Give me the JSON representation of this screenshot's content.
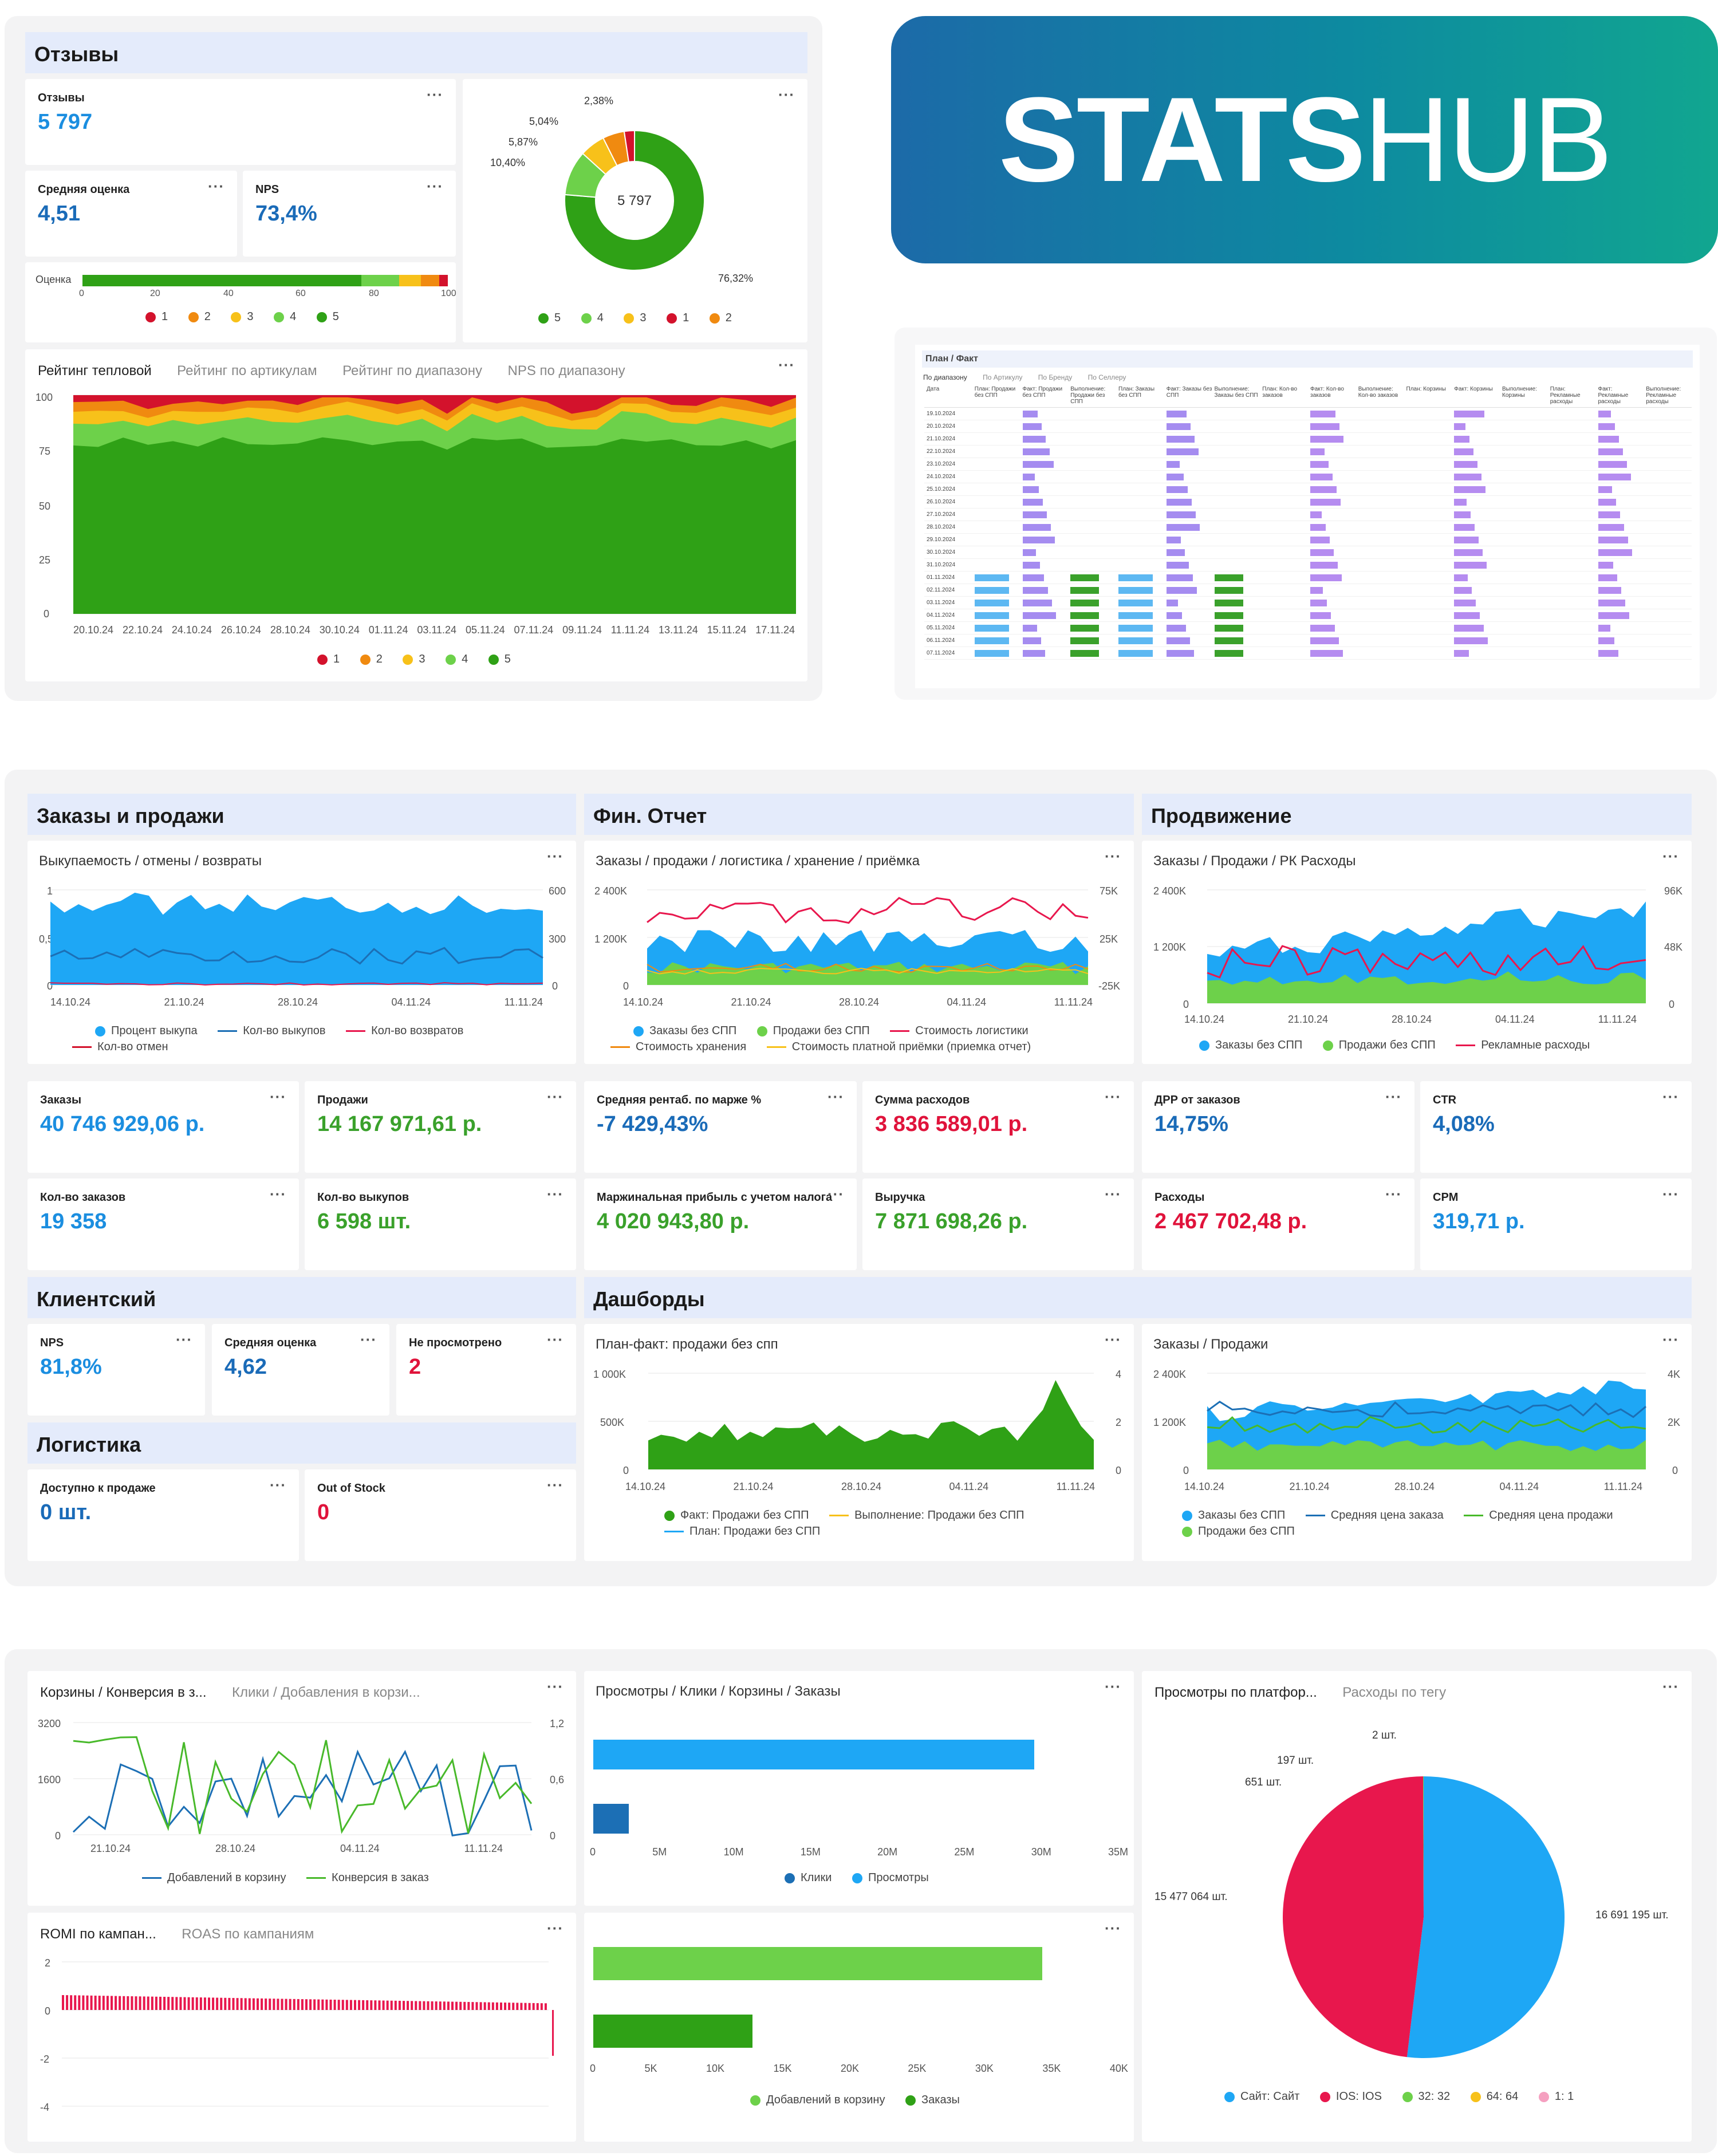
{
  "colors": {
    "r1": "#d3122c",
    "r2": "#f08a10",
    "r3": "#f7c11a",
    "r4": "#6dd14a",
    "r5": "#2fa116",
    "blue": "#1ea7f5",
    "dblue": "#1c6fb5",
    "red": "#e8174d",
    "green": "#48b92a",
    "lgreen": "#6dd14a",
    "orange": "#f08a10",
    "yellow": "#f7c11a"
  },
  "logo": {
    "bold": "STATS",
    "rest": "HUB"
  },
  "reviews": {
    "header": "Отзывы",
    "count_label": "Отзывы",
    "count_value": "5 797",
    "avg_label": "Средняя оценка",
    "avg_value": "4,51",
    "nps_label": "NPS",
    "nps_value": "73,4%",
    "rating_label": "Оценка",
    "rating_ticks": [
      "0",
      "20",
      "40",
      "60",
      "80",
      "100"
    ],
    "rating_bar": [
      {
        "grade": "5",
        "pct": 76.32
      },
      {
        "grade": "4",
        "pct": 10.4
      },
      {
        "grade": "3",
        "pct": 5.87
      },
      {
        "grade": "2",
        "pct": 5.04
      },
      {
        "grade": "1",
        "pct": 2.38
      }
    ],
    "grade_legend": [
      "1",
      "2",
      "3",
      "4",
      "5"
    ],
    "donut_center": "5 797",
    "donut": [
      {
        "grade": "5",
        "pct": 76.32,
        "label": "76,32%"
      },
      {
        "grade": "4",
        "pct": 10.4,
        "label": "10,40%"
      },
      {
        "grade": "3",
        "pct": 5.87,
        "label": "5,87%"
      },
      {
        "grade": "2",
        "pct": 5.04,
        "label": "5,04%"
      },
      {
        "grade": "1",
        "pct": 2.38,
        "label": "2,38%"
      }
    ],
    "donut_legend": [
      "5",
      "4",
      "3",
      "1",
      "2"
    ],
    "tabs": [
      "Рейтинг тепловой",
      "Рейтинг по артикулам",
      "Рейтинг по диапазону",
      "NPS по диапазону"
    ],
    "area_y": [
      "100",
      "75",
      "50",
      "25",
      "0"
    ],
    "area_x": [
      "20.10.24",
      "22.10.24",
      "24.10.24",
      "26.10.24",
      "28.10.24",
      "30.10.24",
      "01.11.24",
      "03.11.24",
      "05.11.24",
      "07.11.24",
      "09.11.24",
      "11.11.24",
      "13.11.24",
      "15.11.24",
      "17.11.24"
    ]
  },
  "plan_fact": {
    "title": "План / Факт",
    "tabs": [
      "По диапазону",
      "По Артикулу",
      "По Бренду",
      "По Селлеру"
    ],
    "columns": [
      "Дата",
      "План: Продажи без СПП",
      "Факт: Продажи без СПП",
      "Выполнение: Продажи без СПП",
      "План: Заказы без СПП",
      "Факт: Заказы без СПП",
      "Выполнение: Заказы без СПП",
      "План: Кол-во заказов",
      "Факт: Кол-во заказов",
      "Выполнение: Кол-во заказов",
      "План: Корзины",
      "Факт: Корзины",
      "Выполнение: Корзины",
      "План: Рекламные расходы",
      "Факт: Рекламные расходы",
      "Выполнение: Рекламные расходы"
    ],
    "dates": [
      "19.10.2024",
      "20.10.2024",
      "21.10.2024",
      "22.10.2024",
      "23.10.2024",
      "24.10.2024",
      "25.10.2024",
      "26.10.2024",
      "27.10.2024",
      "28.10.2024",
      "29.10.2024",
      "30.10.2024",
      "31.10.2024",
      "01.11.2024",
      "02.11.2024",
      "03.11.2024",
      "04.11.2024",
      "05.11.2024",
      "06.11.2024",
      "07.11.2024"
    ]
  },
  "orders": {
    "header": "Заказы и продажи",
    "chart_title": "Выкупаемость / отмены / возвраты",
    "y_left": [
      "1",
      "0,5",
      "0"
    ],
    "y_right": [
      "600",
      "300",
      "0"
    ],
    "x": [
      "14.10.24",
      "21.10.24",
      "28.10.24",
      "04.11.24",
      "11.11.24"
    ],
    "legend": [
      "Процент выкупа",
      "Кол-во выкупов",
      "Кол-во возвратов",
      "Кол-во отмен"
    ],
    "k1_label": "Заказы",
    "k1_value": "40 746 929,06 р.",
    "k2_label": "Продажи",
    "k2_value": "14 167 971,61 р.",
    "k3_label": "Кол-во заказов",
    "k3_value": "19 358",
    "k4_label": "Кол-во выкупов",
    "k4_value": "6 598 шт."
  },
  "fin": {
    "header": "Фин. Отчет",
    "chart_title": "Заказы / продажи / логистика / хранение / приёмка",
    "y_left": [
      "2 400K",
      "1 200K",
      "0"
    ],
    "y_right": [
      "75K",
      "25K",
      "-25K"
    ],
    "x": [
      "14.10.24",
      "21.10.24",
      "28.10.24",
      "04.11.24",
      "11.11.24"
    ],
    "legend": [
      "Заказы без СПП",
      "Продажи без СПП",
      "Стоимость логистики",
      "Стоимость хранения",
      "Стоимость платной приёмки (приемка отчет)"
    ],
    "k1_label": "Средняя рентаб. по марже %",
    "k1_value": "-7 429,43%",
    "k2_label": "Сумма расходов",
    "k2_value": "3 836 589,01 р.",
    "k3_label": "Маржинальная прибыль с учетом налога",
    "k3_value": "4 020 943,80 р.",
    "k4_label": "Выручка",
    "k4_value": "7 871 698,26 р."
  },
  "promo": {
    "header": "Продвижение",
    "chart_title": "Заказы / Продажи / РК Расходы",
    "y_left": [
      "2 400K",
      "1 200K",
      "0"
    ],
    "y_right": [
      "96K",
      "48K",
      "0"
    ],
    "x": [
      "14.10.24",
      "21.10.24",
      "28.10.24",
      "04.11.24",
      "11.11.24"
    ],
    "legend": [
      "Заказы без СПП",
      "Продажи без СПП",
      "Рекламные расходы"
    ],
    "k1_label": "ДРР от заказов",
    "k1_value": "14,75%",
    "k2_label": "CTR",
    "k2_value": "4,08%",
    "k3_label": "Расходы",
    "k3_value": "2 467 702,48 р.",
    "k4_label": "CPM",
    "k4_value": "319,71 р."
  },
  "client": {
    "header": "Клиентский",
    "k1_label": "NPS",
    "k1_value": "81,8%",
    "k2_label": "Средняя оценка",
    "k2_value": "4,62",
    "k3_label": "Не просмотрено",
    "k3_value": "2"
  },
  "logistics": {
    "header": "Логистика",
    "k1_label": "Доступно к продаже",
    "k1_value": "0 шт.",
    "k2_label": "Out of Stock",
    "k2_value": "0"
  },
  "dash": {
    "header": "Дашборды",
    "c1_title": "План-факт: продажи без спп",
    "c1_y_left": [
      "1 000K",
      "500K",
      "0"
    ],
    "c1_y_right": [
      "4",
      "2",
      "0"
    ],
    "c1_legend": [
      "Факт: Продажи без СПП",
      "Выполнение: Продажи без СПП",
      "План: Продажи без СПП"
    ],
    "c2_title": "Заказы / Продажи",
    "c2_y_left": [
      "2 400K",
      "1 200K",
      "0"
    ],
    "c2_y_right": [
      "4K",
      "2K",
      "0"
    ],
    "c2_legend": [
      "Заказы без СПП",
      "Средняя цена заказа",
      "Средняя цена продажи",
      "Продажи без СПП"
    ],
    "x": [
      "14.10.24",
      "21.10.24",
      "28.10.24",
      "04.11.24",
      "11.11.24"
    ]
  },
  "bottom": {
    "carts_title": "Корзины / Конверсия в з...",
    "carts_tab": "Клики / Добавления в корзи...",
    "carts_y_left": [
      "3200",
      "1600",
      "0"
    ],
    "carts_y_right": [
      "1,2",
      "0,6",
      "0"
    ],
    "carts_x": [
      "21.10.24",
      "28.10.24",
      "04.11.24",
      "11.11.24"
    ],
    "carts_legend": [
      "Добавлений в корзину",
      "Конверсия в заказ"
    ],
    "views_title": "Просмотры / Клики / Корзины / Заказы",
    "views_x": [
      "0",
      "5M",
      "10M",
      "15M",
      "20M",
      "25M",
      "30M",
      "35M"
    ],
    "views_legend": [
      "Клики",
      "Просмотры"
    ],
    "romi_title": "ROMI по кампан...",
    "romi_tab": "ROAS по кампаниям",
    "romi_y": [
      "2",
      "0",
      "-2",
      "-4"
    ],
    "cart_bar_x": [
      "0",
      "5K",
      "10K",
      "15K",
      "20K",
      "25K",
      "30K",
      "35K",
      "40K"
    ],
    "cart_bar_legend": [
      "Добавлений в корзину",
      "Заказы"
    ],
    "pie_title": "Просмотры по платфор...",
    "pie_tab": "Расходы по тегу",
    "pie_labels": [
      "16 691 195 шт.",
      "15 477 064 шт.",
      "651 шт.",
      "197 шт.",
      "2 шт."
    ],
    "pie_legend": [
      "Сайт: Сайт",
      "IOS: IOS",
      "32: 32",
      "64: 64",
      "1: 1"
    ]
  }
}
